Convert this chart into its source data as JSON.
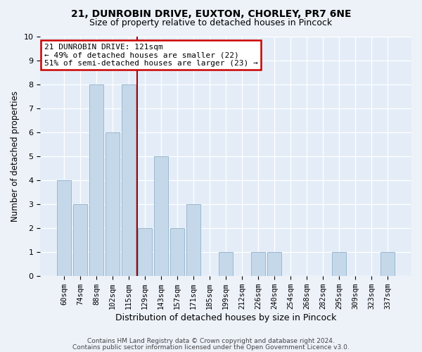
{
  "title1": "21, DUNROBIN DRIVE, EUXTON, CHORLEY, PR7 6NE",
  "title2": "Size of property relative to detached houses in Pincock",
  "xlabel": "Distribution of detached houses by size in Pincock",
  "ylabel": "Number of detached properties",
  "categories": [
    "60sqm",
    "74sqm",
    "88sqm",
    "102sqm",
    "115sqm",
    "129sqm",
    "143sqm",
    "157sqm",
    "171sqm",
    "185sqm",
    "199sqm",
    "212sqm",
    "226sqm",
    "240sqm",
    "254sqm",
    "268sqm",
    "282sqm",
    "295sqm",
    "309sqm",
    "323sqm",
    "337sqm"
  ],
  "values": [
    4,
    3,
    8,
    6,
    8,
    2,
    5,
    2,
    3,
    0,
    1,
    0,
    1,
    1,
    0,
    0,
    0,
    1,
    0,
    0,
    1
  ],
  "bar_color": "#c5d8ea",
  "bar_edgecolor": "#9ab8d0",
  "vline_x": 4.5,
  "vline_color": "#aa0000",
  "annotation_text": "21 DUNROBIN DRIVE: 121sqm\n← 49% of detached houses are smaller (22)\n51% of semi-detached houses are larger (23) →",
  "annotation_box_facecolor": "#ffffff",
  "annotation_box_edgecolor": "#cc0000",
  "ylim": [
    0,
    10
  ],
  "yticks": [
    0,
    1,
    2,
    3,
    4,
    5,
    6,
    7,
    8,
    9,
    10
  ],
  "footer1": "Contains HM Land Registry data © Crown copyright and database right 2024.",
  "footer2": "Contains public sector information licensed under the Open Government Licence v3.0.",
  "bg_color": "#edf2f9",
  "plot_bg_color": "#e4edf7",
  "title1_fontsize": 10,
  "title2_fontsize": 9
}
